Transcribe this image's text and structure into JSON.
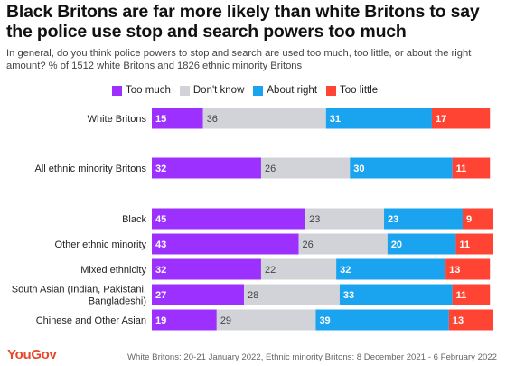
{
  "title": "Black Britons are far more likely than white Britons to say the police use stop and search powers too much",
  "subtitle": "In general, do you think police powers to stop and search are used too much, too little, or about the right amount? % of 1512 white Britons and 1826 ethnic minority Britons",
  "footer": {
    "logo": "YouGov",
    "note": "White Britons: 20-21 January 2022, Ethnic minority Britons: 8 December 2021 - 6 February 2022"
  },
  "colors": {
    "too_much": "#9b30ff",
    "dont_know": "#d2d3d8",
    "about_right": "#1aa3ee",
    "too_little": "#ff4433"
  },
  "chart_data": {
    "type": "bar",
    "orientation": "horizontal",
    "stacked": true,
    "legend_position": "top",
    "xlim": [
      0,
      100
    ],
    "categories": [
      [
        "White Britons"
      ],
      [
        "All ethnic minority Britons"
      ],
      [
        "Black"
      ],
      [
        "Other ethnic minority"
      ],
      [
        "Mixed ethnicity"
      ],
      [
        "South Asian (Indian, Pakistani,",
        "Bangladeshi)"
      ],
      [
        "Chinese and Other Asian"
      ]
    ],
    "series": [
      {
        "name": "Too much",
        "color": "#9b30ff",
        "values": [
          15,
          32,
          45,
          43,
          32,
          27,
          19
        ]
      },
      {
        "name": "Don't know",
        "color": "#d2d3d8",
        "values": [
          36,
          26,
          23,
          26,
          22,
          28,
          29
        ]
      },
      {
        "name": "About right",
        "color": "#1aa3ee",
        "values": [
          31,
          30,
          23,
          20,
          32,
          33,
          39
        ]
      },
      {
        "name": "Too little",
        "color": "#ff4433",
        "values": [
          17,
          11,
          9,
          11,
          13,
          11,
          13
        ]
      }
    ]
  }
}
